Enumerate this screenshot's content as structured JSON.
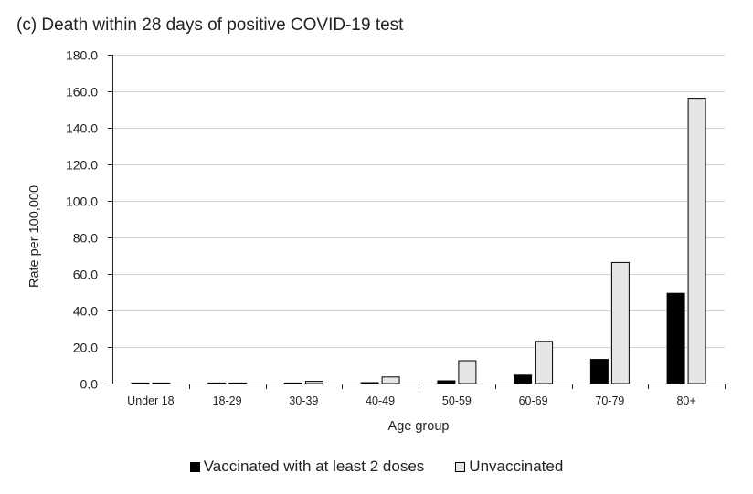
{
  "chart_data": {
    "type": "bar",
    "title": "(c) Death within 28 days of positive COVID-19 test",
    "xlabel": "Age group",
    "ylabel": "Rate per 100,000",
    "ylim": [
      0,
      180
    ],
    "y_ticks": [
      "0.0",
      "20.0",
      "40.0",
      "60.0",
      "80.0",
      "100.0",
      "120.0",
      "140.0",
      "160.0",
      "180.0"
    ],
    "grid": true,
    "legend_position": "bottom",
    "categories": [
      "Under 18",
      "18-29",
      "30-39",
      "40-49",
      "50-59",
      "60-69",
      "70-79",
      "80+"
    ],
    "series": [
      {
        "name": "Vaccinated with at least 2 doses",
        "color": "#000000",
        "values": [
          0.0,
          0.1,
          0.2,
          0.5,
          1.5,
          4.6,
          13.2,
          49.4
        ]
      },
      {
        "name": "Unvaccinated",
        "color": "#e6e6e6",
        "values": [
          0.0,
          0.2,
          1.2,
          3.6,
          12.5,
          23.1,
          66.3,
          156.2
        ]
      }
    ]
  }
}
